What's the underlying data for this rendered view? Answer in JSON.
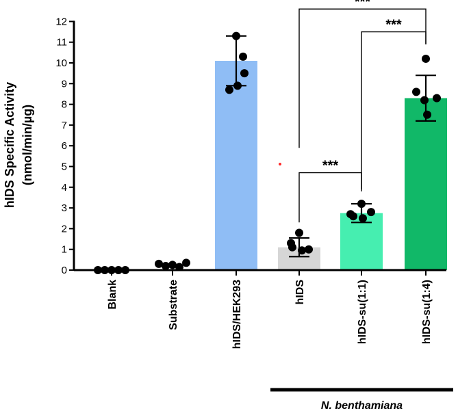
{
  "chart_data": {
    "type": "bar",
    "ylabel_line1": "hIDS Specific Activity",
    "ylabel_line2": "(nmol/min/µg)",
    "ylim": [
      0,
      12
    ],
    "yticks": [
      "0",
      "1",
      "2",
      "3",
      "4",
      "5",
      "6",
      "7",
      "8",
      "9",
      "10",
      "11",
      "12"
    ],
    "categories": [
      "Blank",
      "Substrate",
      "hIDS/HEK293",
      "hIDS",
      "hIDS-su(1:1)",
      "hIDS-su(1:4)"
    ],
    "values": [
      0,
      0.25,
      10.1,
      1.1,
      2.75,
      8.3
    ],
    "errors": [
      0,
      0,
      1.2,
      0.45,
      0.45,
      1.1
    ],
    "bar_colors": [
      "#ffffff",
      "#ffffff",
      "#8fbdf5",
      "#d6d6d6",
      "#46eeb0",
      "#11b868"
    ],
    "points": [
      [
        0,
        0,
        0,
        0,
        0
      ],
      [
        0.3,
        0.2,
        0.25,
        0.15,
        0.35
      ],
      [
        11.3,
        10.3,
        9.5,
        8.9,
        8.7
      ],
      [
        1.8,
        1.3,
        1.0,
        0.95,
        1.1
      ],
      [
        3.2,
        2.8,
        2.6,
        2.5,
        2.7
      ],
      [
        10.2,
        8.6,
        8.3,
        8.2,
        7.5
      ]
    ],
    "group": {
      "label": "N. benthamiana",
      "from": 3,
      "to": 5
    },
    "significance": [
      {
        "from": 0,
        "to": 2,
        "height": 12.6,
        "label": "***"
      },
      {
        "from": 1,
        "to": 2,
        "height": 11.5,
        "label": "***"
      },
      {
        "from": 0,
        "to": 1,
        "height": 4.7,
        "label": "***"
      }
    ]
  }
}
